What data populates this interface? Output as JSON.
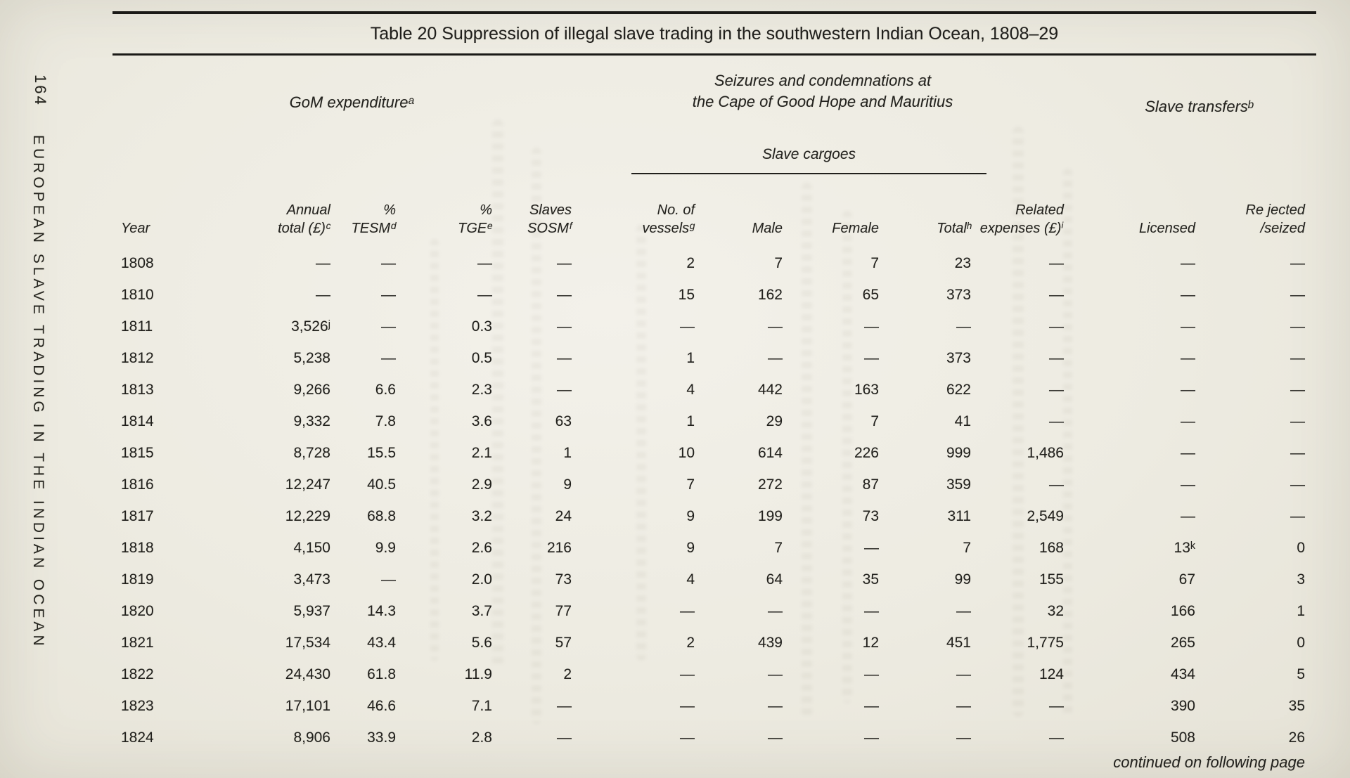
{
  "page": {
    "number": "164",
    "running_title": "EUROPEAN SLAVE TRADING IN THE INDIAN OCEAN",
    "continued_note": "continued on following page"
  },
  "table": {
    "title": "Table 20 Suppression of illegal slave trading in the southwestern Indian Ocean, 1808–29",
    "group_headers": {
      "gom_expenditure": "GoM expenditureᵃ",
      "seizures_line1": "Seizures and condemnations at",
      "seizures_line2": "the Cape of Good Hope and Mauritius",
      "slave_cargoes": "Slave cargoes",
      "slave_transfers": "Slave transfersᵇ"
    },
    "columns": [
      {
        "line1": "",
        "line2": "Year"
      },
      {
        "line1": "Annual",
        "line2": "total (£)ᶜ"
      },
      {
        "line1": "%",
        "line2": "TESMᵈ"
      },
      {
        "line1": "%",
        "line2": "TGEᵉ"
      },
      {
        "line1": "Slaves",
        "line2": "SOSMᶠ"
      },
      {
        "line1": "No. of",
        "line2": "vesselsᵍ"
      },
      {
        "line1": "",
        "line2": "Male"
      },
      {
        "line1": "",
        "line2": "Female"
      },
      {
        "line1": "",
        "line2": "Totalʰ"
      },
      {
        "line1": "Related",
        "line2": "expenses (£)ⁱ"
      },
      {
        "line1": "",
        "line2": "Licensed"
      },
      {
        "line1": "Re jected",
        "line2": "/seized"
      }
    ],
    "rows": [
      [
        "1808",
        "—",
        "—",
        "—",
        "—",
        "2",
        "7",
        "7",
        "23",
        "—",
        "—",
        "—"
      ],
      [
        "1810",
        "—",
        "—",
        "—",
        "—",
        "15",
        "162",
        "65",
        "373",
        "—",
        "—",
        "—"
      ],
      [
        "1811",
        "3,526ʲ",
        "—",
        "0.3",
        "—",
        "—",
        "—",
        "—",
        "—",
        "—",
        "—",
        "—"
      ],
      [
        "1812",
        "5,238",
        "—",
        "0.5",
        "—",
        "1",
        "—",
        "—",
        "373",
        "—",
        "—",
        "—"
      ],
      [
        "1813",
        "9,266",
        "6.6",
        "2.3",
        "—",
        "4",
        "442",
        "163",
        "622",
        "—",
        "—",
        "—"
      ],
      [
        "1814",
        "9,332",
        "7.8",
        "3.6",
        "63",
        "1",
        "29",
        "7",
        "41",
        "—",
        "—",
        "—"
      ],
      [
        "1815",
        "8,728",
        "15.5",
        "2.1",
        "1",
        "10",
        "614",
        "226",
        "999",
        "1,486",
        "—",
        "—"
      ],
      [
        "1816",
        "12,247",
        "40.5",
        "2.9",
        "9",
        "7",
        "272",
        "87",
        "359",
        "—",
        "—",
        "—"
      ],
      [
        "1817",
        "12,229",
        "68.8",
        "3.2",
        "24",
        "9",
        "199",
        "73",
        "311",
        "2,549",
        "—",
        "—"
      ],
      [
        "1818",
        "4,150",
        "9.9",
        "2.6",
        "216",
        "9",
        "7",
        "—",
        "7",
        "168",
        "13ᵏ",
        "0"
      ],
      [
        "1819",
        "3,473",
        "—",
        "2.0",
        "73",
        "4",
        "64",
        "35",
        "99",
        "155",
        "67",
        "3"
      ],
      [
        "1820",
        "5,937",
        "14.3",
        "3.7",
        "77",
        "—",
        "—",
        "—",
        "—",
        "32",
        "166",
        "1"
      ],
      [
        "1821",
        "17,534",
        "43.4",
        "5.6",
        "57",
        "2",
        "439",
        "12",
        "451",
        "1,775",
        "265",
        "0"
      ],
      [
        "1822",
        "24,430",
        "61.8",
        "11.9",
        "2",
        "—",
        "—",
        "—",
        "—",
        "124",
        "434",
        "5"
      ],
      [
        "1823",
        "17,101",
        "46.6",
        "7.1",
        "—",
        "—",
        "—",
        "—",
        "—",
        "—",
        "390",
        "35"
      ],
      [
        "1824",
        "8,906",
        "33.9",
        "2.8",
        "—",
        "—",
        "—",
        "—",
        "—",
        "—",
        "508",
        "26"
      ]
    ]
  }
}
